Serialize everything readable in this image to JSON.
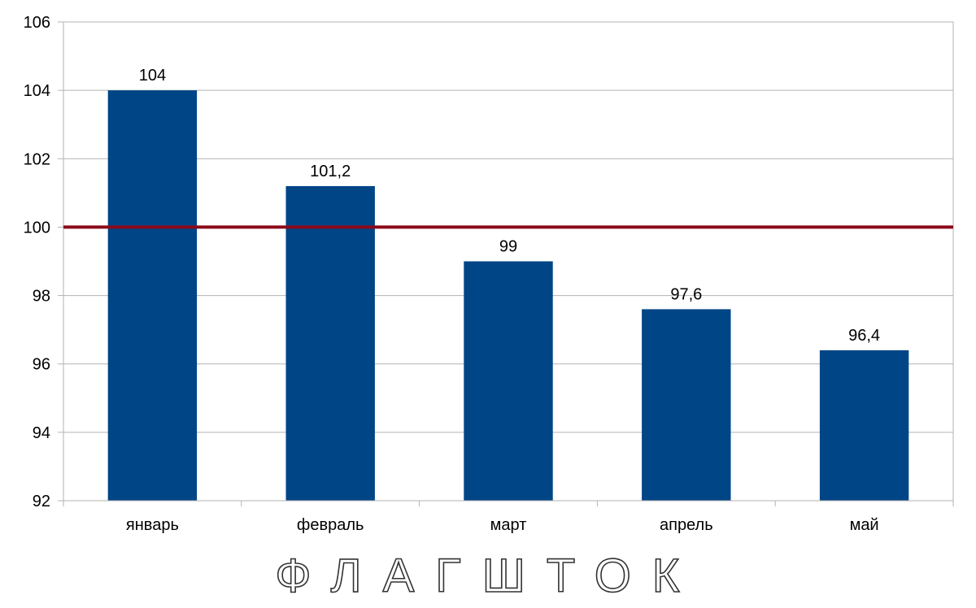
{
  "chart_data": {
    "type": "bar",
    "categories": [
      "январь",
      "февраль",
      "март",
      "апрель",
      "май"
    ],
    "values": [
      104,
      101.2,
      99,
      97.6,
      96.4
    ],
    "data_labels": [
      "104",
      "101,2",
      "99",
      "97,6",
      "96,4"
    ],
    "ylim": [
      92,
      106
    ],
    "yticks": [
      92,
      94,
      96,
      98,
      100,
      102,
      104,
      106
    ],
    "reference_line": {
      "value": 100,
      "color": "#8b0a1a"
    },
    "grid": true,
    "bar_color": "#004586",
    "title": "",
    "xlabel": "",
    "ylabel": ""
  },
  "watermark": {
    "text": "ФЛАГШТОК"
  }
}
